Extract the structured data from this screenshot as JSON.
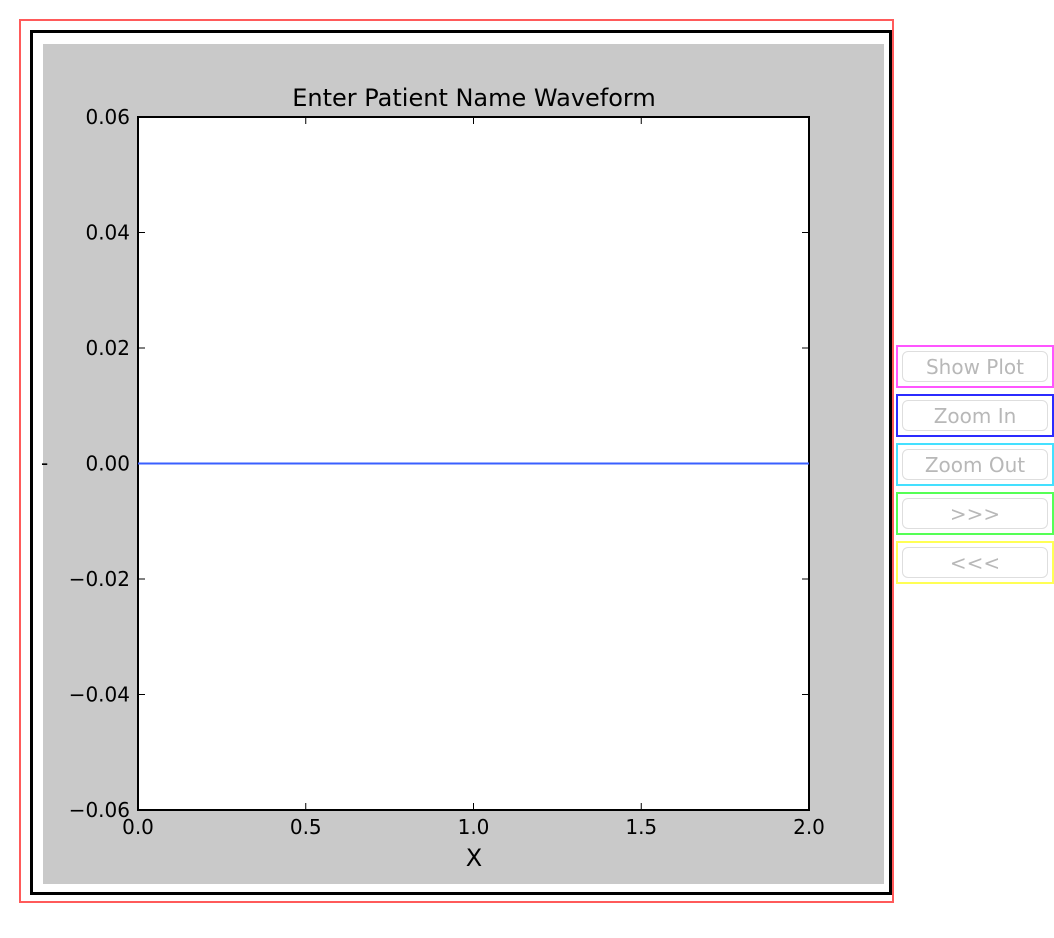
{
  "chart_data": {
    "type": "line",
    "title": "Enter Patient Name Waveform",
    "xlabel": "X",
    "ylabel": "",
    "xlim": [
      0.0,
      2.0
    ],
    "ylim": [
      -0.06,
      0.06
    ],
    "xticks": [
      "0.0",
      "0.5",
      "1.0",
      "1.5",
      "2.0"
    ],
    "yticks": [
      "0.06",
      "0.04",
      "0.02",
      "0.00",
      "−0.02",
      "−0.04",
      "−0.06"
    ],
    "ytick_values": [
      0.06,
      0.04,
      0.02,
      0.0,
      -0.02,
      -0.04,
      -0.06
    ],
    "xtick_values": [
      0.0,
      0.5,
      1.0,
      1.5,
      2.0
    ],
    "series": [
      {
        "x": [
          0.0,
          2.0
        ],
        "y": [
          0.0,
          0.0
        ],
        "color": "#3a5fff"
      }
    ],
    "grid": false
  },
  "left_marker": "-",
  "buttons": {
    "show_plot": "Show Plot",
    "zoom_in": "Zoom In",
    "zoom_out": "Zoom Out",
    "next": ">>>",
    "prev": "<<<"
  }
}
